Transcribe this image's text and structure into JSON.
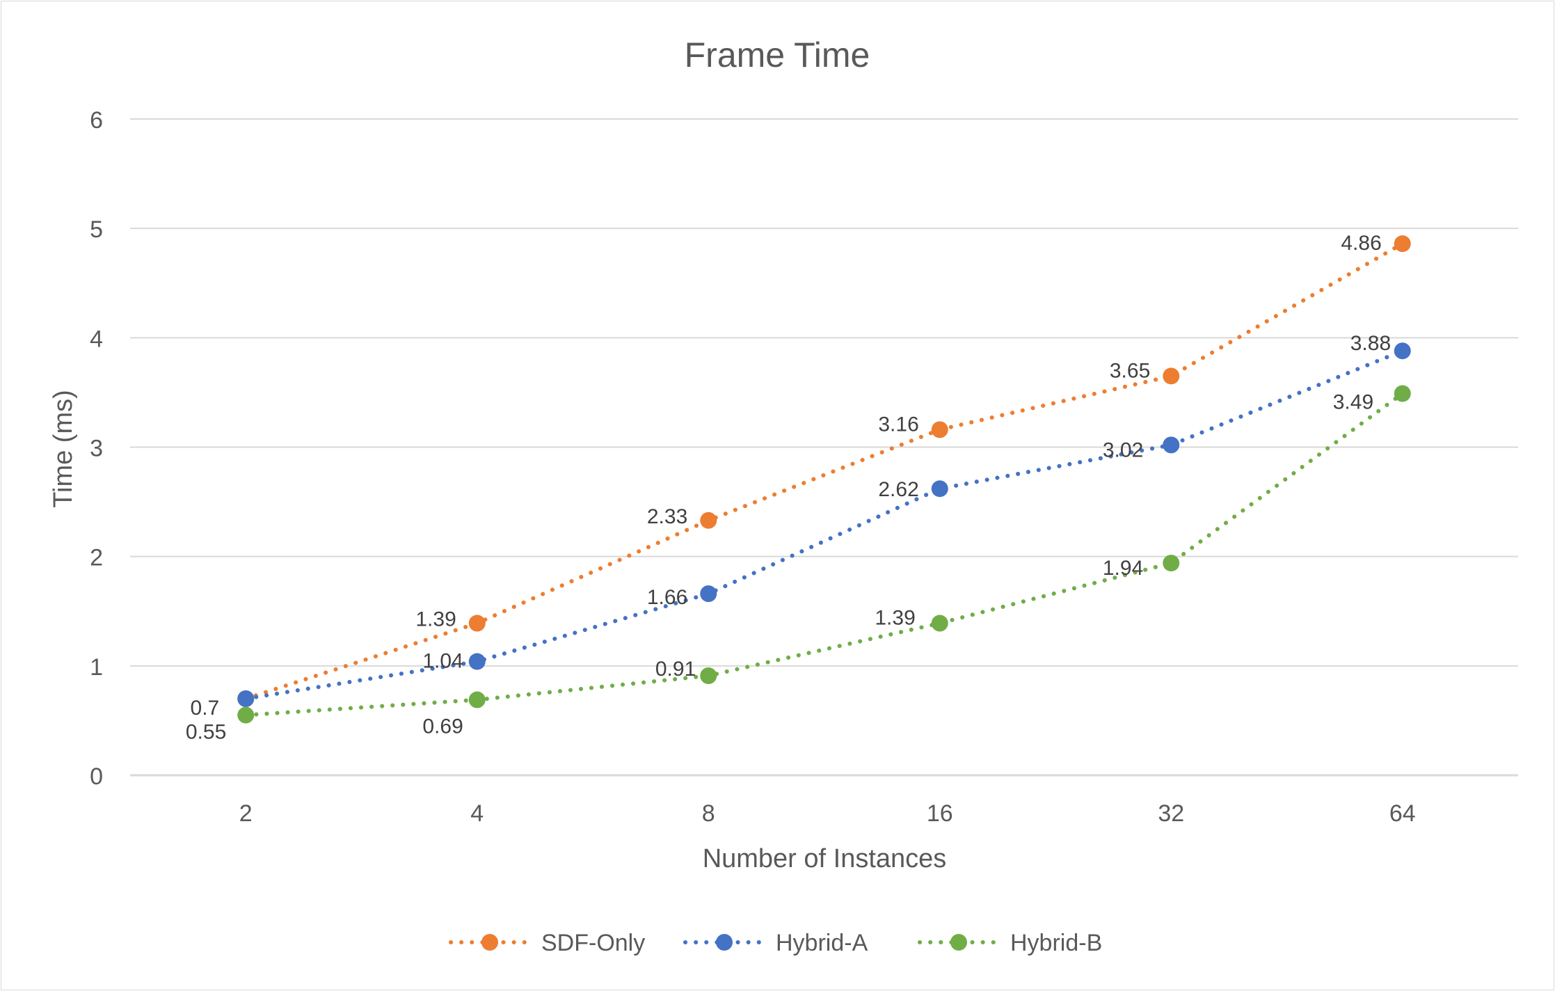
{
  "chart_data": {
    "type": "line",
    "title": "Frame Time",
    "xlabel": "Number of Instances",
    "ylabel": "Time (ms)",
    "categories": [
      "2",
      "4",
      "8",
      "16",
      "32",
      "64"
    ],
    "ylim": [
      0,
      6
    ],
    "yticks": [
      "0",
      "1",
      "2",
      "3",
      "4",
      "5",
      "6"
    ],
    "grid": "horizontal",
    "legend_position": "bottom",
    "series": [
      {
        "name": "SDF-Only",
        "color": "#ED7D31",
        "values": [
          0.7,
          1.39,
          2.33,
          3.16,
          3.65,
          4.86
        ],
        "labels": [
          "",
          "1.39",
          "2.33",
          "3.16",
          "3.65",
          "4.86"
        ]
      },
      {
        "name": "Hybrid-A",
        "color": "#4472C4",
        "values": [
          0.7,
          1.04,
          1.66,
          2.62,
          3.02,
          3.88
        ],
        "labels": [
          "0.7",
          "1.04",
          "1.66",
          "2.62",
          "3.02",
          "3.88"
        ]
      },
      {
        "name": "Hybrid-B",
        "color": "#70AD47",
        "values": [
          0.55,
          0.69,
          0.91,
          1.39,
          1.94,
          3.49
        ],
        "labels": [
          "0.55",
          "0.69",
          "0.91",
          "1.39",
          "1.94",
          "3.49"
        ]
      }
    ]
  }
}
